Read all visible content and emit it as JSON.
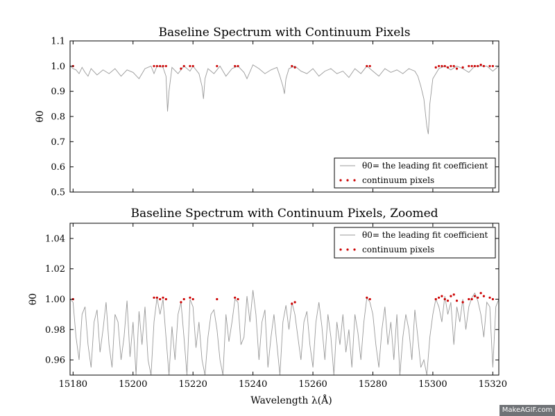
{
  "chart_data": [
    {
      "type": "line",
      "title": "Baseline Spectrum with Continuum Pixels",
      "xlabel": "",
      "ylabel": "θ0",
      "xlim": [
        15179,
        15322
      ],
      "ylim": [
        0.5,
        1.1
      ],
      "yticks": [
        "0.5",
        "0.6",
        "0.7",
        "0.8",
        "0.9",
        "1.0",
        "1.1"
      ],
      "yticks_values": [
        0.5,
        0.6,
        0.7,
        0.8,
        0.9,
        1.0,
        1.1
      ],
      "legend_position": "lower right",
      "series": [
        {
          "name": "θ0= the leading fit coefficient",
          "color": "#999999",
          "x": [
            15179,
            15180,
            15181,
            15182,
            15183,
            15184,
            15185,
            15186,
            15188,
            15190,
            15192,
            15194,
            15196,
            15198,
            15200,
            15202,
            15204,
            15206,
            15207,
            15208,
            15210,
            15211,
            15211.5,
            15212,
            15213,
            15215,
            15217,
            15219,
            15220,
            15222,
            15223,
            15223.5,
            15224,
            15225,
            15227,
            15229,
            15231,
            15233,
            15235,
            15237,
            15238,
            15240,
            15242,
            15244,
            15246,
            15248,
            15249,
            15250,
            15250.5,
            15251,
            15252,
            15254,
            15256,
            15258,
            15260,
            15262,
            15264,
            15266,
            15268,
            15270,
            15272,
            15274,
            15276,
            15278,
            15280,
            15282,
            15284,
            15286,
            15288,
            15290,
            15292,
            15294,
            15295,
            15296,
            15297,
            15298,
            15298.5,
            15299,
            15300,
            15302,
            15304,
            15306,
            15308,
            15310,
            15312,
            15314,
            15316,
            15318,
            15320,
            15322
          ],
          "y": [
            1.0,
            0.99,
            0.985,
            0.97,
            0.995,
            0.975,
            0.96,
            0.99,
            0.965,
            0.985,
            0.97,
            0.99,
            0.96,
            0.985,
            0.975,
            0.95,
            0.99,
            1.0,
            0.97,
            1.0,
            0.995,
            0.96,
            0.82,
            0.9,
            0.995,
            0.97,
            1.0,
            0.98,
            1.0,
            0.97,
            0.92,
            0.87,
            0.95,
            0.99,
            0.97,
            1.0,
            0.96,
            0.99,
            1.0,
            0.975,
            0.95,
            1.005,
            0.99,
            0.97,
            0.985,
            0.995,
            0.96,
            0.92,
            0.89,
            0.95,
            0.99,
            1.0,
            0.98,
            0.97,
            0.99,
            0.96,
            0.98,
            0.99,
            0.97,
            0.98,
            0.955,
            0.99,
            0.97,
            1.0,
            0.98,
            0.96,
            0.99,
            0.975,
            0.985,
            0.97,
            0.99,
            0.98,
            0.96,
            0.92,
            0.87,
            0.76,
            0.73,
            0.85,
            0.95,
            0.99,
            1.0,
            0.985,
            1.0,
            0.99,
            0.975,
            1.0,
            1.0,
            1.0,
            0.98,
            1.0
          ]
        },
        {
          "name": "continuum pixels",
          "color": "#cc0000",
          "x": [
            15180,
            15207,
            15208,
            15209,
            15210,
            15211,
            15216,
            15217,
            15219,
            15220,
            15228,
            15234,
            15235,
            15253,
            15254,
            15278,
            15279,
            15301,
            15302,
            15303,
            15304,
            15305,
            15306,
            15307,
            15308,
            15310,
            15312,
            15313,
            15314,
            15315,
            15316,
            15317,
            15319,
            15320
          ],
          "y": [
            1.0,
            1.0,
            1.0,
            1.0,
            1.0,
            1.0,
            0.99,
            1.0,
            1.0,
            1.0,
            1.0,
            1.0,
            1.0,
            1.0,
            0.995,
            1.0,
            1.0,
            0.995,
            1.0,
            1.0,
            1.0,
            0.995,
            1.0,
            1.0,
            0.99,
            0.995,
            1.0,
            1.0,
            1.0,
            1.0,
            1.005,
            1.0,
            1.0,
            1.0
          ]
        }
      ]
    },
    {
      "type": "line",
      "title": "Baseline Spectrum with Continuum Pixels, Zoomed",
      "xlabel": "Wavelength λ(Å)",
      "ylabel": "θ0",
      "xlim": [
        15179,
        15322
      ],
      "ylim": [
        0.95,
        1.05
      ],
      "xticks": [
        "15180",
        "15200",
        "15220",
        "15240",
        "15260",
        "15280",
        "15300",
        "15320"
      ],
      "xticks_values": [
        15180,
        15200,
        15220,
        15240,
        15260,
        15280,
        15300,
        15320
      ],
      "yticks": [
        "0.96",
        "0.98",
        "1.00",
        "1.02",
        "1.04"
      ],
      "yticks_values": [
        0.96,
        0.98,
        1.0,
        1.02,
        1.04
      ],
      "legend_position": "upper right",
      "series": [
        {
          "name": "θ0= the leading fit coefficient",
          "color": "#999999",
          "x": [
            15179,
            15180,
            15181,
            15182,
            15183,
            15184,
            15185,
            15186,
            15187,
            15188,
            15189,
            15190,
            15191,
            15192,
            15193,
            15194,
            15195,
            15196,
            15197,
            15198,
            15199,
            15200,
            15201,
            15202,
            15203,
            15204,
            15205,
            15206,
            15207,
            15208,
            15209,
            15210,
            15211,
            15212,
            15213,
            15214,
            15215,
            15216,
            15217,
            15218,
            15219,
            15220,
            15221,
            15222,
            15223,
            15224,
            15225,
            15226,
            15227,
            15228,
            15229,
            15230,
            15231,
            15232,
            15233,
            15234,
            15235,
            15236,
            15237,
            15238,
            15239,
            15240,
            15241,
            15242,
            15243,
            15244,
            15245,
            15246,
            15247,
            15248,
            15249,
            15250,
            15251,
            15252,
            15253,
            15254,
            15255,
            15256,
            15257,
            15258,
            15259,
            15260,
            15261,
            15262,
            15263,
            15264,
            15265,
            15266,
            15267,
            15268,
            15269,
            15270,
            15271,
            15272,
            15273,
            15274,
            15275,
            15276,
            15277,
            15278,
            15279,
            15280,
            15281,
            15282,
            15283,
            15284,
            15285,
            15286,
            15287,
            15288,
            15289,
            15290,
            15291,
            15292,
            15293,
            15294,
            15295,
            15296,
            15297,
            15298,
            15299,
            15300,
            15301,
            15302,
            15303,
            15304,
            15305,
            15306,
            15307,
            15308,
            15309,
            15310,
            15311,
            15312,
            15313,
            15314,
            15315,
            15316,
            15317,
            15318,
            15319,
            15320,
            15321,
            15322
          ],
          "y": [
            1.0,
            0.998,
            0.975,
            0.96,
            0.99,
            0.995,
            0.97,
            0.955,
            0.985,
            0.993,
            0.965,
            0.98,
            0.998,
            0.97,
            0.955,
            0.99,
            0.985,
            0.96,
            0.975,
            0.999,
            0.962,
            0.985,
            0.95,
            0.992,
            0.97,
            0.995,
            0.96,
            0.95,
            0.985,
            1.001,
            0.99,
            1.0,
            0.975,
            0.95,
            0.982,
            0.96,
            0.99,
            0.998,
            0.975,
            0.95,
            1.0,
            0.995,
            0.968,
            0.985,
            0.96,
            0.95,
            0.975,
            0.99,
            0.993,
            0.98,
            0.96,
            0.95,
            0.99,
            0.972,
            0.985,
            1.0,
            0.998,
            0.97,
            0.975,
            1.002,
            0.985,
            1.006,
            0.99,
            0.96,
            0.985,
            0.993,
            0.955,
            0.975,
            0.99,
            0.97,
            0.95,
            0.985,
            0.996,
            0.98,
            0.998,
            0.99,
            0.975,
            0.96,
            0.985,
            0.992,
            0.97,
            0.955,
            0.985,
            0.998,
            0.982,
            0.96,
            0.99,
            0.975,
            0.95,
            0.985,
            0.97,
            0.99,
            0.965,
            0.98,
            0.955,
            0.99,
            0.978,
            0.96,
            0.985,
            1.001,
            0.998,
            0.99,
            0.97,
            0.955,
            0.98,
            0.995,
            0.97,
            0.985,
            0.96,
            0.99,
            0.95,
            0.975,
            0.99,
            0.98,
            0.96,
            0.993,
            0.975,
            0.955,
            0.96,
            0.95,
            0.975,
            0.99,
            1.0,
            0.995,
            0.985,
            1.002,
            0.99,
            0.998,
            0.97,
            0.995,
            0.985,
            1.0,
            0.98,
            0.995,
            1.001,
            1.004,
            0.999,
            0.99,
            0.975,
            0.998,
            0.995,
            0.955,
            0.995,
            1.0
          ]
        },
        {
          "name": "continuum pixels",
          "color": "#cc0000",
          "x": [
            15180,
            15207,
            15208,
            15209,
            15210,
            15211,
            15216,
            15217,
            15219,
            15220,
            15228,
            15234,
            15235,
            15253,
            15254,
            15278,
            15279,
            15301,
            15302,
            15303,
            15304,
            15305,
            15306,
            15307,
            15308,
            15310,
            15312,
            15313,
            15314,
            15315,
            15316,
            15317,
            15319,
            15320
          ],
          "y": [
            1.0,
            1.001,
            1.001,
            1.0,
            1.001,
            1.0,
            0.998,
            1.0,
            1.001,
            1.0,
            1.0,
            1.001,
            1.0,
            0.997,
            0.998,
            1.001,
            1.0,
            1.0,
            1.001,
            1.002,
            1.0,
            0.999,
            1.002,
            1.003,
            0.999,
            0.998,
            1.0,
            1.0,
            1.002,
            1.001,
            1.004,
            1.002,
            1.001,
            1.0
          ]
        }
      ]
    }
  ],
  "watermark": "MakeAGIF.com"
}
